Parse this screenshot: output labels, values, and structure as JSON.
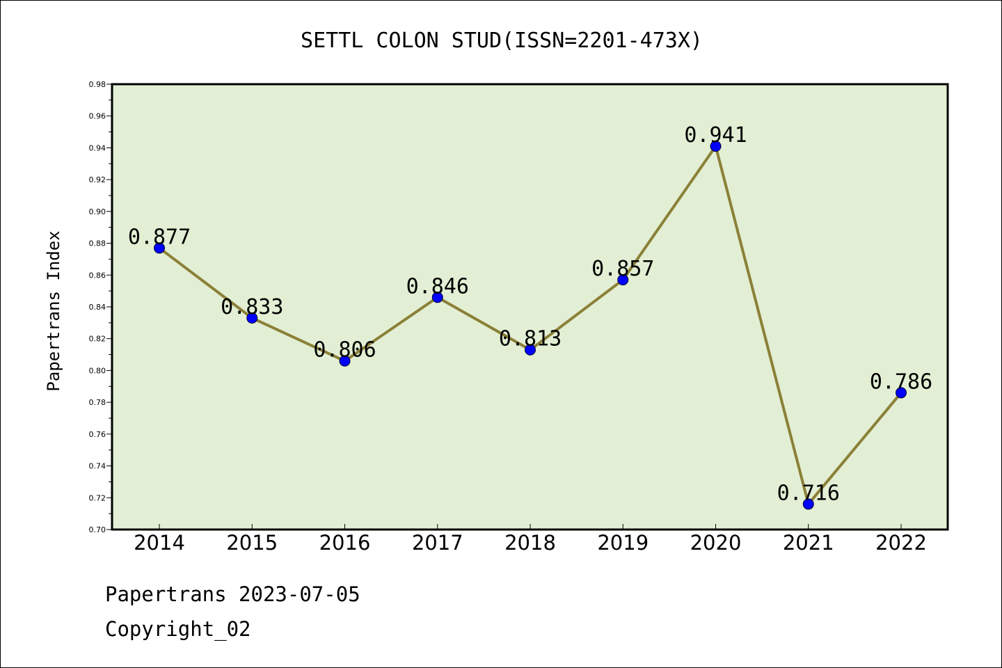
{
  "chart_data": {
    "type": "line",
    "title": "SETTL COLON STUD(ISSN=2201-473X)",
    "xlabel": "",
    "ylabel": "Papertrans Index",
    "categories": [
      "2014",
      "2015",
      "2016",
      "2017",
      "2018",
      "2019",
      "2020",
      "2021",
      "2022"
    ],
    "values": [
      0.877,
      0.833,
      0.806,
      0.846,
      0.813,
      0.857,
      0.941,
      0.716,
      0.786
    ],
    "data_labels": [
      "0.877",
      "0.833",
      "0.806",
      "0.846",
      "0.813",
      "0.857",
      "0.941",
      "0.716",
      "0.786"
    ],
    "ylim": [
      0.7,
      0.98
    ],
    "yticks": [
      "0.70",
      "0.72",
      "0.74",
      "0.76",
      "0.78",
      "0.80",
      "0.82",
      "0.84",
      "0.86",
      "0.88",
      "0.90",
      "0.92",
      "0.94",
      "0.96",
      "0.98"
    ],
    "grid": false,
    "legend": "none",
    "colors": {
      "plot_background": "#e2efd4",
      "line": "#8b8038",
      "marker": "#0000ff"
    }
  },
  "footer": {
    "date_line": "Papertrans 2023-07-05",
    "copyright_line": "Copyright_02"
  }
}
